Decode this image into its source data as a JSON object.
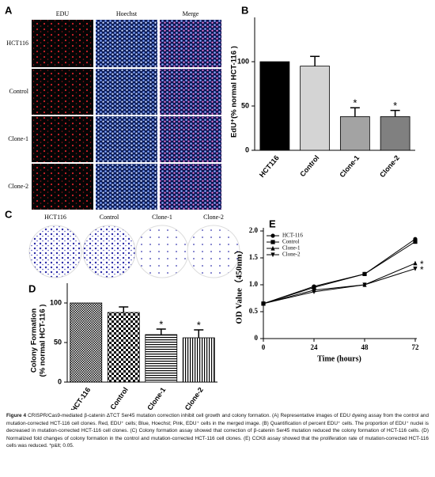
{
  "panels": {
    "A": {
      "label": "A",
      "columns": [
        "EDU",
        "Hoechst",
        "Merge"
      ],
      "rows": [
        "HCT116",
        "Control",
        "Clone-1",
        "Clone-2"
      ]
    },
    "C": {
      "label": "C",
      "columns": [
        "HCT116",
        "Control",
        "Clone-1",
        "Clone-2"
      ]
    }
  },
  "chart_data": [
    {
      "panel": "B",
      "type": "bar",
      "y_label": "EdU⁺(% normal HCT-116 )",
      "categories": [
        "HCT116",
        "Control",
        "Clone-1",
        "Clone-2"
      ],
      "values": [
        100,
        95,
        38,
        38
      ],
      "errors": [
        null,
        11,
        10,
        7
      ],
      "colors": [
        "#000000",
        "#d4d4d4",
        "#a3a3a3",
        "#808080"
      ],
      "ylim": [
        0,
        150
      ],
      "yticks": [
        0,
        50,
        100
      ],
      "annotations": [
        {
          "text": "*",
          "category": "Clone-1"
        },
        {
          "text": "*",
          "category": "Clone-2"
        }
      ]
    },
    {
      "panel": "D",
      "type": "bar",
      "y_label": [
        "Colony Formation",
        "(% normal HCT-116 )"
      ],
      "categories": [
        "HCT-116",
        "Control",
        "Clone-1",
        "Clone-2"
      ],
      "values": [
        100,
        88,
        60,
        56
      ],
      "errors": [
        null,
        7,
        7,
        10
      ],
      "patterns": [
        "dots",
        "checker",
        "hlines",
        "vlines"
      ],
      "ylim": [
        0,
        125
      ],
      "yticks": [
        0,
        50,
        100
      ],
      "annotations": [
        {
          "text": "*",
          "category": "Clone-1"
        },
        {
          "text": "*",
          "category": "Clone-2"
        }
      ]
    },
    {
      "panel": "E",
      "type": "line",
      "x_label": "Time (hours)",
      "y_label": "OD Value（450nm）",
      "x": [
        0,
        24,
        48,
        72
      ],
      "xlim": [
        0,
        72
      ],
      "xticks": [
        0,
        24,
        48,
        72
      ],
      "ylim": [
        0,
        2
      ],
      "yticks": [
        0,
        0.5,
        {
          "value": 1,
          "label": "1.0"
        },
        1.5,
        {
          "value": 2,
          "label": "2.0"
        }
      ],
      "legend": "upper left",
      "series": [
        {
          "name": "HCT-116",
          "color": "#000000",
          "marker": "circle",
          "values": [
            0.65,
            0.97,
            1.2,
            1.85
          ]
        },
        {
          "name": "Control",
          "color": "#000000",
          "marker": "square",
          "values": [
            0.65,
            0.95,
            1.2,
            1.8
          ]
        },
        {
          "name": "Clone-1",
          "color": "#000000",
          "marker": "triangle-up",
          "values": [
            0.65,
            0.9,
            1.0,
            1.4
          ]
        },
        {
          "name": "Clone-2",
          "color": "#000000",
          "marker": "triangle-down",
          "values": [
            0.65,
            0.87,
            1.0,
            1.3
          ]
        }
      ],
      "annotations": [
        {
          "text": "*",
          "series": "Clone-1"
        },
        {
          "text": "*",
          "series": "Clone-2"
        }
      ]
    }
  ],
  "caption": {
    "label": "Figure 4",
    "text": "CRISPR/Cas9-mediated β-catenin ΔTCT Ser45 mutation correction inhibit cell growth and colony formation. (A) Representative images of EDU dyeing assay from the control and mutation-corrected HCT-116 cell clones. Red, EDU⁺ cells; Blue, Hoechst; Pink, EDU⁺ cells in the merged image. (B) Quantification of percent EDU⁺ cells. The proportion of EDU⁺ nuclei is decreased in mutation-corrected HCT-116 cell clones. (C) Colony formation assay showed that correction of β-catenin Ser45 mutation reduced the colony formation of HCT-116 cells. (D) Normalized fold changes of colony formation in the control and mutation-corrected HCT-116 cell clones. (E) CCK8 assay showed that the proliferation rate of mutation-corrected HCT-116 cells was reduced. *p&lt; 0.05."
  }
}
